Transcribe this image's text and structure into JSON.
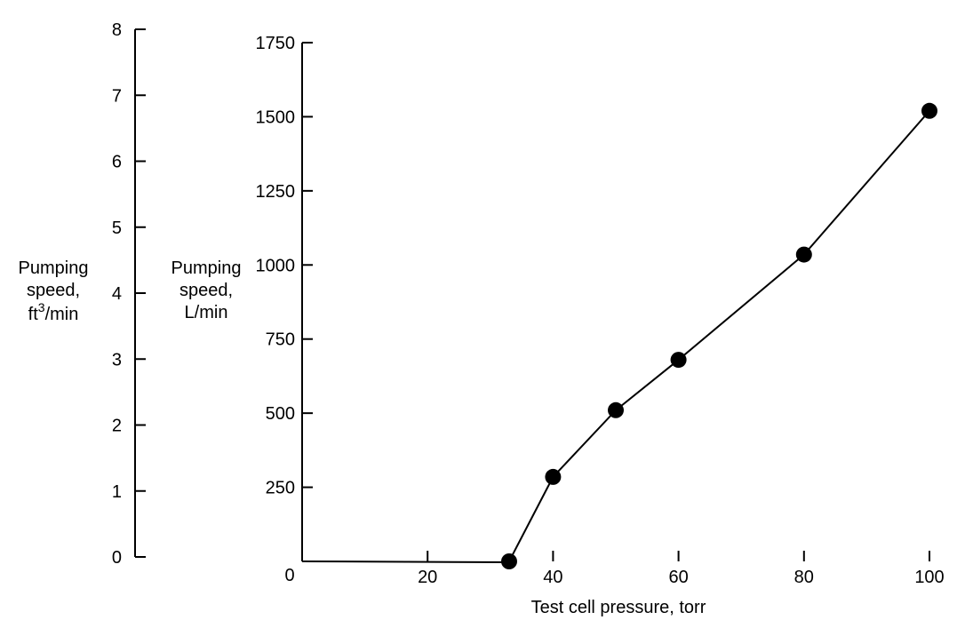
{
  "chart_data": {
    "type": "line",
    "x_axis": {
      "label": "Test cell pressure, torr",
      "ticks": [
        0,
        20,
        40,
        60,
        80,
        100
      ],
      "range": [
        0,
        100
      ]
    },
    "y_axis_primary": {
      "label_lines": [
        "Pumping",
        "speed,",
        "L/min"
      ],
      "ticks": [
        0,
        250,
        500,
        750,
        1000,
        1250,
        1500,
        1750
      ],
      "range": [
        0,
        1750
      ]
    },
    "y_axis_secondary": {
      "label_lines": [
        "Pumping",
        "speed,",
        "ft",
        "3",
        "/min"
      ],
      "ticks": [
        0,
        1,
        2,
        3,
        4,
        5,
        6,
        7,
        8
      ],
      "range": [
        0,
        8
      ]
    },
    "series": [
      {
        "x": [
          33,
          40,
          50,
          60,
          80,
          100
        ],
        "y": [
          0,
          285,
          510,
          680,
          1035,
          1520
        ]
      }
    ],
    "baseline": {
      "x": [
        0,
        33
      ],
      "y": [
        0,
        0
      ]
    },
    "grid": false,
    "legend": "none",
    "colors": {
      "line": "#000000",
      "marker": "#000000",
      "background": "#ffffff"
    }
  }
}
